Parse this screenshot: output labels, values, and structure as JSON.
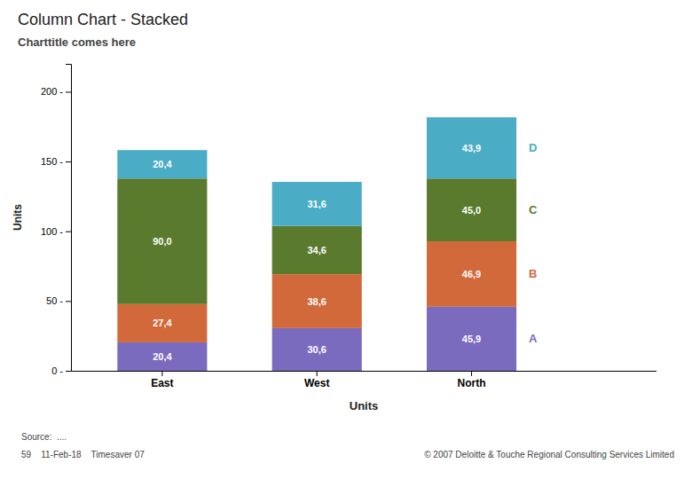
{
  "chart_data": {
    "type": "bar",
    "title": "Column Chart - Stacked",
    "subtitle": "Charttitle comes here",
    "categories": [
      "East",
      "West",
      "North"
    ],
    "series": [
      {
        "name": "A",
        "color": "#7b6bbf",
        "values": [
          20.4,
          30.6,
          45.9
        ],
        "value_labels": [
          "20,4",
          "30,6",
          "45,9"
        ]
      },
      {
        "name": "B",
        "color": "#d2693a",
        "values": [
          27.4,
          38.6,
          46.9
        ],
        "value_labels": [
          "27,4",
          "38,6",
          "46,9"
        ]
      },
      {
        "name": "C",
        "color": "#5a7a2e",
        "values": [
          90.0,
          34.6,
          45.0
        ],
        "value_labels": [
          "90,0",
          "34,6",
          "45,0"
        ]
      },
      {
        "name": "D",
        "color": "#4bacc6",
        "values": [
          20.4,
          31.6,
          43.9
        ],
        "value_labels": [
          "20,4",
          "31,6",
          "43,9"
        ]
      }
    ],
    "x_label": "Units",
    "y_label": "Units",
    "ylim": [
      0,
      220
    ],
    "yticks": [
      {
        "value": 0,
        "label": "0 -"
      },
      {
        "value": 50,
        "label": "50 -"
      },
      {
        "value": 100,
        "label": "100 -"
      },
      {
        "value": 150,
        "label": "150 -"
      },
      {
        "value": 200,
        "label": "200 -"
      }
    ],
    "stacked": true,
    "data_labels": true,
    "grid": false,
    "annotations": [
      "Source:  ....",
      "59    11-Feb-18    Timesaver 07",
      "© 2007 Deloitte & Touche Regional Consulting Services Limited"
    ]
  }
}
